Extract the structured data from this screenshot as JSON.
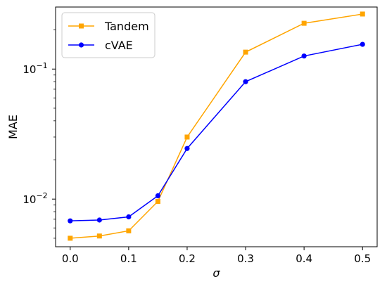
{
  "chart_data": {
    "type": "line",
    "xlabel": "σ",
    "ylabel": "MAE",
    "yscale": "log",
    "xlim": [
      -0.025,
      0.525
    ],
    "ylim": [
      0.0043,
      0.3
    ],
    "x_ticks": [
      {
        "value": 0.0,
        "label": "0.0"
      },
      {
        "value": 0.1,
        "label": "0.1"
      },
      {
        "value": 0.2,
        "label": "0.2"
      },
      {
        "value": 0.3,
        "label": "0.3"
      },
      {
        "value": 0.4,
        "label": "0.4"
      },
      {
        "value": 0.5,
        "label": "0.5"
      }
    ],
    "y_ticks": [
      {
        "value": 0.01,
        "base": "10",
        "exp": "−2"
      },
      {
        "value": 0.1,
        "base": "10",
        "exp": "−1"
      }
    ],
    "x": [
      0.0,
      0.05,
      0.1,
      0.15,
      0.2,
      0.3,
      0.4,
      0.5
    ],
    "series": [
      {
        "name": "Tandem",
        "color": "#FFA500",
        "marker": "square",
        "values": [
          0.005,
          0.0052,
          0.0057,
          0.0096,
          0.03,
          0.135,
          0.225,
          0.265
        ]
      },
      {
        "name": "cVAE",
        "color": "#0000FF",
        "marker": "circle",
        "values": [
          0.0068,
          0.0069,
          0.0073,
          0.0106,
          0.0245,
          0.08,
          0.126,
          0.155
        ]
      }
    ],
    "legend_position": "top-left",
    "grid": false
  }
}
